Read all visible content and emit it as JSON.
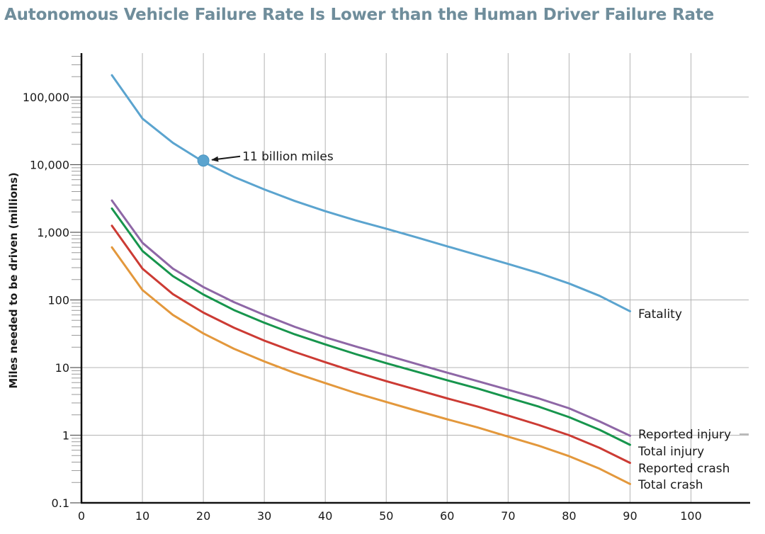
{
  "chart_data": {
    "type": "line",
    "title": "Autonomous Vehicle Failure Rate Is Lower than the Human Driver Failure Rate",
    "xlabel": "",
    "ylabel": "Miles needed to be driven (millions)",
    "xlim": [
      0,
      100
    ],
    "ylim": [
      0.1,
      300000
    ],
    "yscale": "log",
    "grid": true,
    "x_ticks": [
      0,
      10,
      20,
      30,
      40,
      50,
      60,
      70,
      80,
      90,
      100
    ],
    "y_ticks": [
      {
        "value": 0.1,
        "label": "0.1"
      },
      {
        "value": 1,
        "label": "1"
      },
      {
        "value": 10,
        "label": "10"
      },
      {
        "value": 100,
        "label": "100"
      },
      {
        "value": 1000,
        "label": "1,000"
      },
      {
        "value": 10000,
        "label": "10,000"
      },
      {
        "value": 100000,
        "label": "100,000"
      }
    ],
    "x": [
      5,
      10,
      15,
      20,
      25,
      30,
      35,
      40,
      45,
      50,
      55,
      60,
      65,
      70,
      75,
      80,
      85,
      90
    ],
    "series": [
      {
        "name": "Fatality",
        "color": "#5ba4cf",
        "values": [
          210000,
          48000,
          21000,
          11000,
          6600,
          4300,
          2900,
          2050,
          1500,
          1130,
          840,
          620,
          460,
          340,
          250,
          175,
          115,
          68
        ]
      },
      {
        "name": "Reported injury",
        "color": "#8e67a6",
        "values": [
          2950,
          700,
          290,
          155,
          93,
          60,
          40,
          28,
          20.5,
          15.2,
          11.3,
          8.4,
          6.3,
          4.7,
          3.5,
          2.5,
          1.6,
          0.98
        ]
      },
      {
        "name": "Total injury",
        "color": "#17954d",
        "values": [
          2250,
          530,
          225,
          120,
          71,
          46,
          31,
          22,
          15.8,
          11.6,
          8.7,
          6.5,
          4.9,
          3.6,
          2.65,
          1.85,
          1.2,
          0.72
        ]
      },
      {
        "name": "Reported crash",
        "color": "#cc3b34",
        "values": [
          1250,
          290,
          122,
          65,
          39,
          25,
          17,
          12,
          8.6,
          6.3,
          4.7,
          3.5,
          2.65,
          1.95,
          1.42,
          1.0,
          0.65,
          0.39
        ]
      },
      {
        "name": "Total crash",
        "color": "#e3983c",
        "values": [
          600,
          140,
          60,
          32,
          19,
          12.3,
          8.3,
          5.9,
          4.2,
          3.1,
          2.3,
          1.72,
          1.3,
          0.95,
          0.7,
          0.49,
          0.32,
          0.19
        ]
      }
    ],
    "annotations": [
      {
        "text": "11 billion miles",
        "x": 20,
        "y": 11500,
        "series": "Fatality"
      }
    ]
  }
}
